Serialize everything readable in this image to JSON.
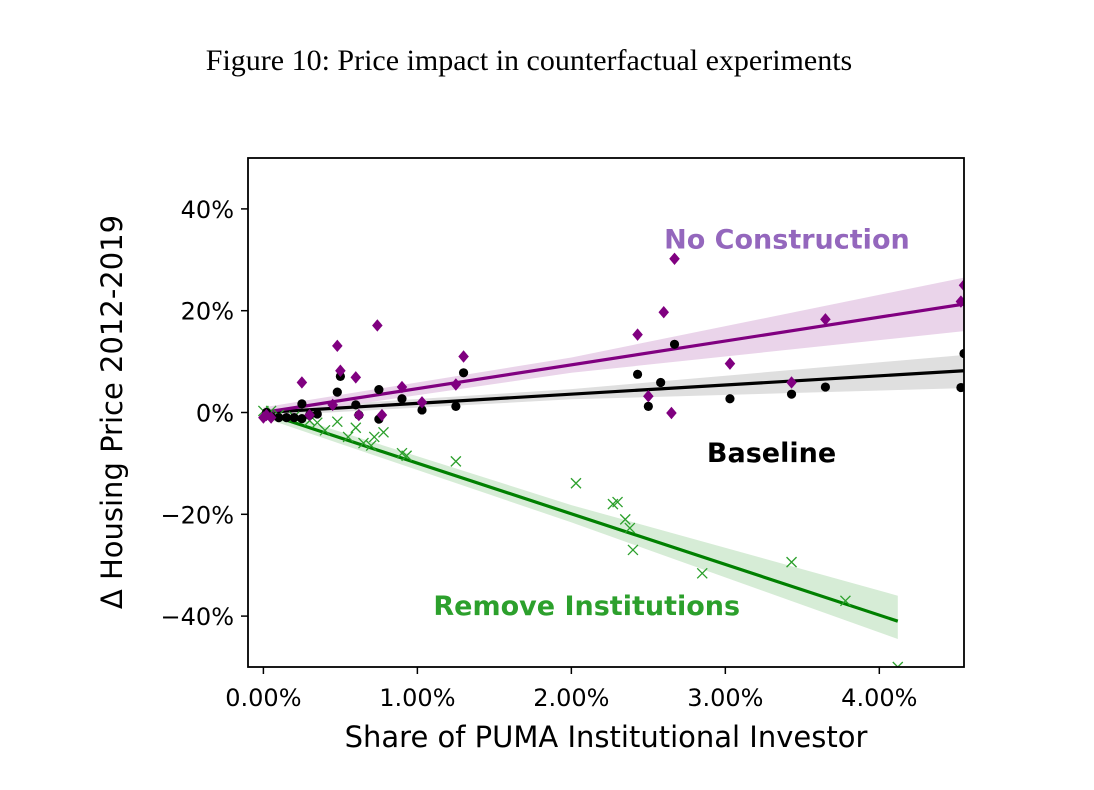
{
  "figure_title": "Figure 10: Price impact in counterfactual experiments",
  "chart_data": {
    "type": "scatter",
    "title": "",
    "xlabel": "Share of PUMA Institutional Investor",
    "ylabel": "Δ Housing Price 2012-2019",
    "xlim": [
      -0.1,
      4.55
    ],
    "ylim": [
      -50,
      50
    ],
    "xticks": [
      0,
      1,
      2,
      3,
      4
    ],
    "xtick_labels": [
      "0.00%",
      "1.00%",
      "2.00%",
      "3.00%",
      "4.00%"
    ],
    "yticks": [
      40,
      20,
      0,
      -20,
      -40
    ],
    "ytick_labels": [
      "40%",
      "20%",
      "0%",
      "−20%",
      "−40%"
    ],
    "annotations": [
      {
        "text": "No Construction",
        "x": 3.4,
        "y": 34,
        "color": "#9467bd"
      },
      {
        "text": "Baseline",
        "x": 3.3,
        "y": -8,
        "color": "#000000"
      },
      {
        "text": "Remove Institutions",
        "x": 2.1,
        "y": -38,
        "color": "#2ca02c"
      }
    ],
    "series": [
      {
        "name": "No Construction",
        "marker": "diamond",
        "color": "#800080",
        "band_color": "#e6cce6",
        "fit": {
          "x": [
            0,
            4.55
          ],
          "y": [
            0.0,
            21.3
          ]
        },
        "band": {
          "x": [
            0,
            2,
            4.55
          ],
          "lower": [
            -1.0,
            7.8,
            16.0
          ],
          "upper": [
            1.0,
            10.8,
            26.5
          ]
        },
        "points": [
          [
            0.0,
            -1.0
          ],
          [
            0.02,
            -0.5
          ],
          [
            0.05,
            -1.0
          ],
          [
            0.25,
            5.9
          ],
          [
            0.3,
            -0.5
          ],
          [
            0.45,
            1.5
          ],
          [
            0.48,
            13.1
          ],
          [
            0.5,
            8.2
          ],
          [
            0.6,
            6.9
          ],
          [
            0.62,
            -0.5
          ],
          [
            0.74,
            17.1
          ],
          [
            0.77,
            -0.5
          ],
          [
            0.9,
            5.0
          ],
          [
            1.03,
            2.0
          ],
          [
            1.25,
            5.5
          ],
          [
            1.3,
            11.0
          ],
          [
            2.43,
            15.3
          ],
          [
            2.5,
            3.2
          ],
          [
            2.6,
            19.7
          ],
          [
            2.65,
            -0.1
          ],
          [
            2.67,
            30.2
          ],
          [
            3.03,
            9.6
          ],
          [
            3.43,
            5.9
          ],
          [
            3.65,
            18.3
          ],
          [
            4.53,
            21.8
          ],
          [
            4.55,
            25.0
          ]
        ]
      },
      {
        "name": "Baseline",
        "marker": "circle",
        "color": "#000000",
        "band_color": "#d9d9d9",
        "fit": {
          "x": [
            0,
            4.55
          ],
          "y": [
            0.0,
            8.2
          ]
        },
        "band": {
          "x": [
            0,
            2,
            4.55
          ],
          "lower": [
            -0.7,
            2.6,
            4.8
          ],
          "upper": [
            0.7,
            4.6,
            11.3
          ]
        },
        "points": [
          [
            0.02,
            0.0
          ],
          [
            0.05,
            -0.8
          ],
          [
            0.1,
            -1.0
          ],
          [
            0.15,
            -1.0
          ],
          [
            0.2,
            -1.0
          ],
          [
            0.25,
            1.7
          ],
          [
            0.25,
            -1.2
          ],
          [
            0.3,
            -0.5
          ],
          [
            0.35,
            -0.3
          ],
          [
            0.48,
            4.0
          ],
          [
            0.5,
            7.1
          ],
          [
            0.6,
            1.5
          ],
          [
            0.62,
            -0.5
          ],
          [
            0.75,
            4.5
          ],
          [
            0.75,
            -1.3
          ],
          [
            0.9,
            2.7
          ],
          [
            1.03,
            0.5
          ],
          [
            1.25,
            1.2
          ],
          [
            1.3,
            7.8
          ],
          [
            2.43,
            7.5
          ],
          [
            2.5,
            1.2
          ],
          [
            2.58,
            5.9
          ],
          [
            2.67,
            13.4
          ],
          [
            3.03,
            2.7
          ],
          [
            3.43,
            3.6
          ],
          [
            3.65,
            5.0
          ],
          [
            4.53,
            4.9
          ],
          [
            4.55,
            11.6
          ]
        ]
      },
      {
        "name": "Remove Institutions",
        "marker": "x",
        "color": "#2ca02c",
        "line_color": "#008000",
        "band_color": "#cfe9cf",
        "fit": {
          "x": [
            0,
            4.12
          ],
          "y": [
            0.0,
            -41.0
          ]
        },
        "band": {
          "x": [
            0,
            2,
            4.12
          ],
          "lower": [
            -1.0,
            -21.6,
            -44.5
          ],
          "upper": [
            1.0,
            -18.2,
            -36.0
          ]
        },
        "points": [
          [
            0.0,
            0.3
          ],
          [
            0.05,
            0.3
          ],
          [
            0.1,
            -0.5
          ],
          [
            0.2,
            -0.8
          ],
          [
            0.3,
            -1.6
          ],
          [
            0.35,
            -2.0
          ],
          [
            0.4,
            -3.5
          ],
          [
            0.48,
            -1.8
          ],
          [
            0.55,
            -4.8
          ],
          [
            0.6,
            -3.0
          ],
          [
            0.65,
            -6.0
          ],
          [
            0.7,
            -6.5
          ],
          [
            0.72,
            -4.8
          ],
          [
            0.78,
            -3.9
          ],
          [
            0.9,
            -8.0
          ],
          [
            0.93,
            -8.5
          ],
          [
            1.25,
            -9.6
          ],
          [
            2.03,
            -13.9
          ],
          [
            2.27,
            -18.0
          ],
          [
            2.3,
            -17.6
          ],
          [
            2.35,
            -21.0
          ],
          [
            2.38,
            -22.7
          ],
          [
            2.4,
            -27.0
          ],
          [
            2.85,
            -31.6
          ],
          [
            3.43,
            -29.4
          ],
          [
            3.78,
            -37.0
          ],
          [
            4.12,
            -50.0
          ]
        ]
      }
    ]
  }
}
